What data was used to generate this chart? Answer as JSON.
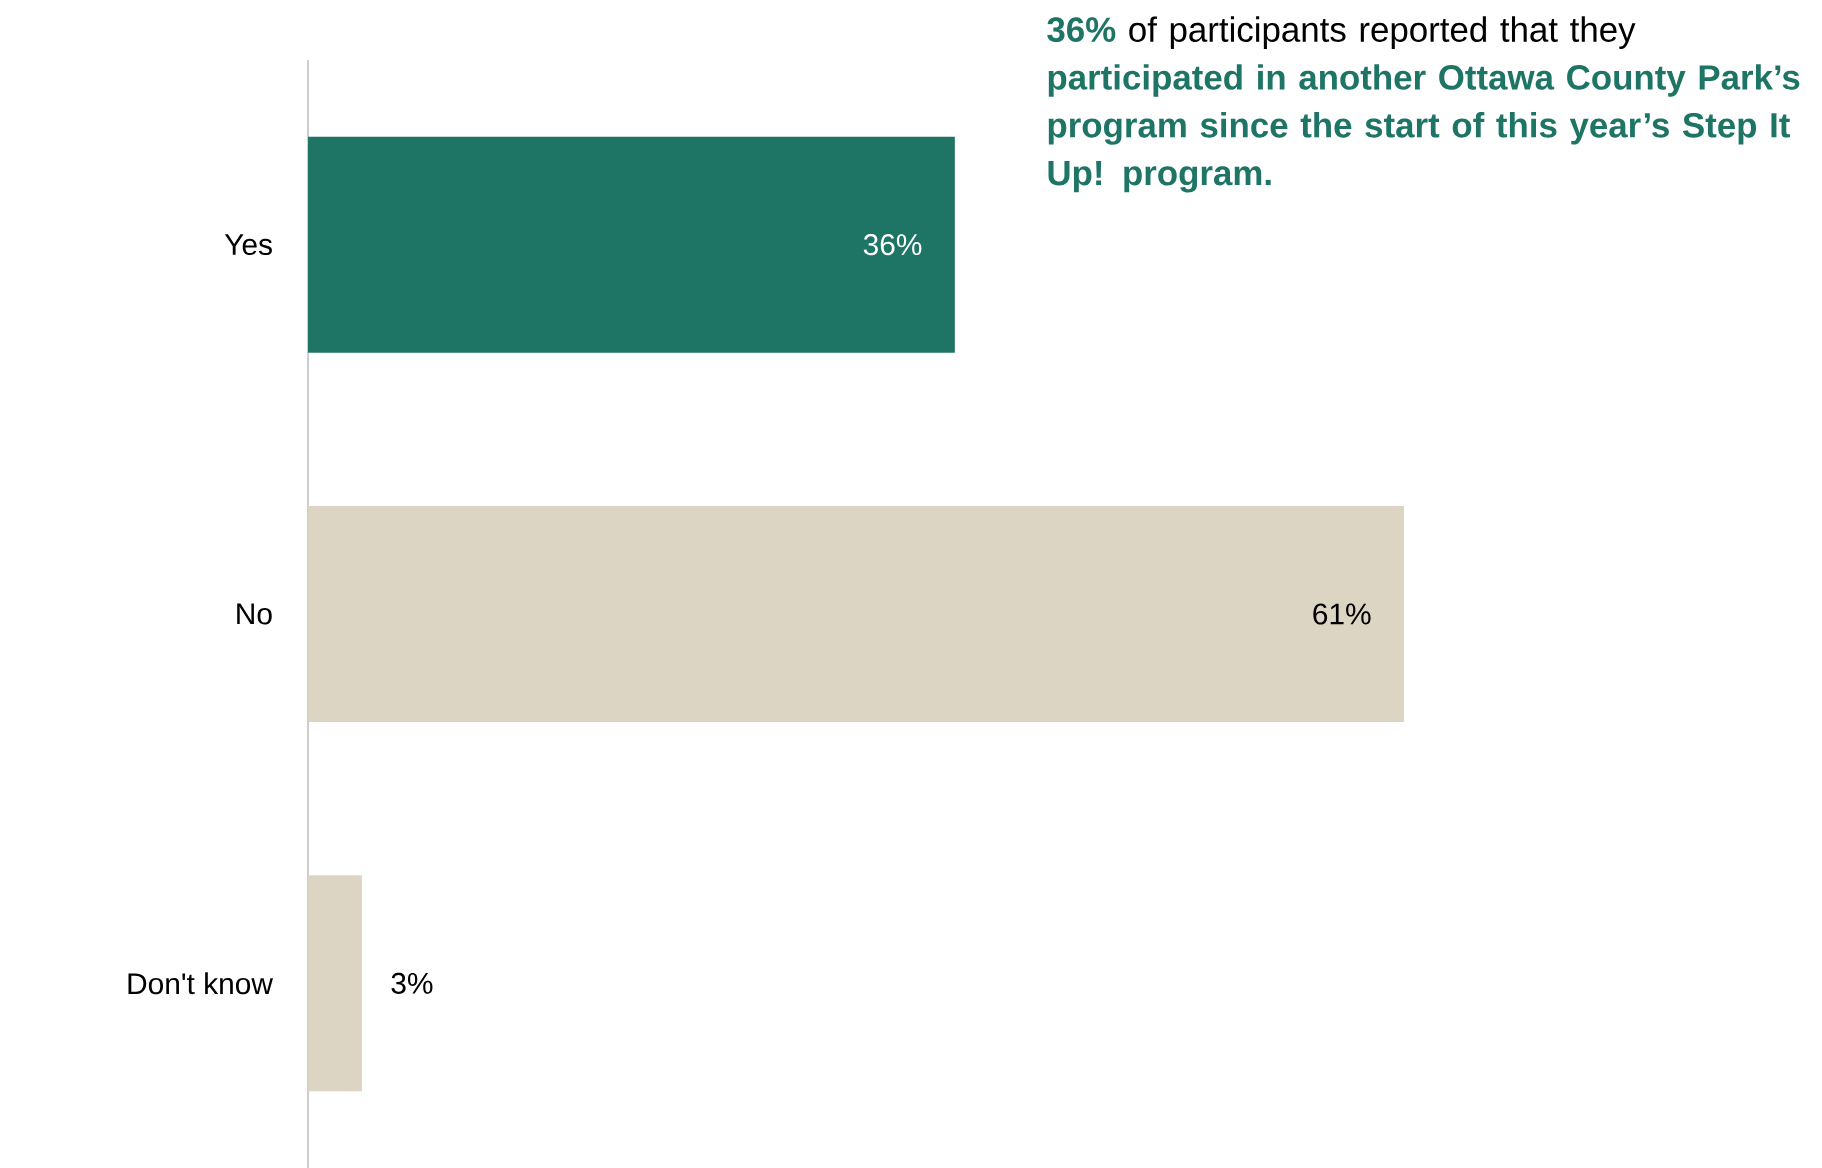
{
  "chart_data": {
    "type": "bar",
    "orientation": "horizontal",
    "categories": [
      "Yes",
      "No",
      "Don't know"
    ],
    "values": [
      36,
      61,
      3
    ],
    "colors": [
      "#1e7566",
      "#ddd5c3",
      "#ddd5c3"
    ],
    "value_labels": [
      "36%",
      "61%",
      "3%"
    ],
    "annotations": [
      "**36%** of participants reported that they **participated in another Ottawa County Park’s program since the start of this year’s Step It Up! program.**"
    ]
  }
}
